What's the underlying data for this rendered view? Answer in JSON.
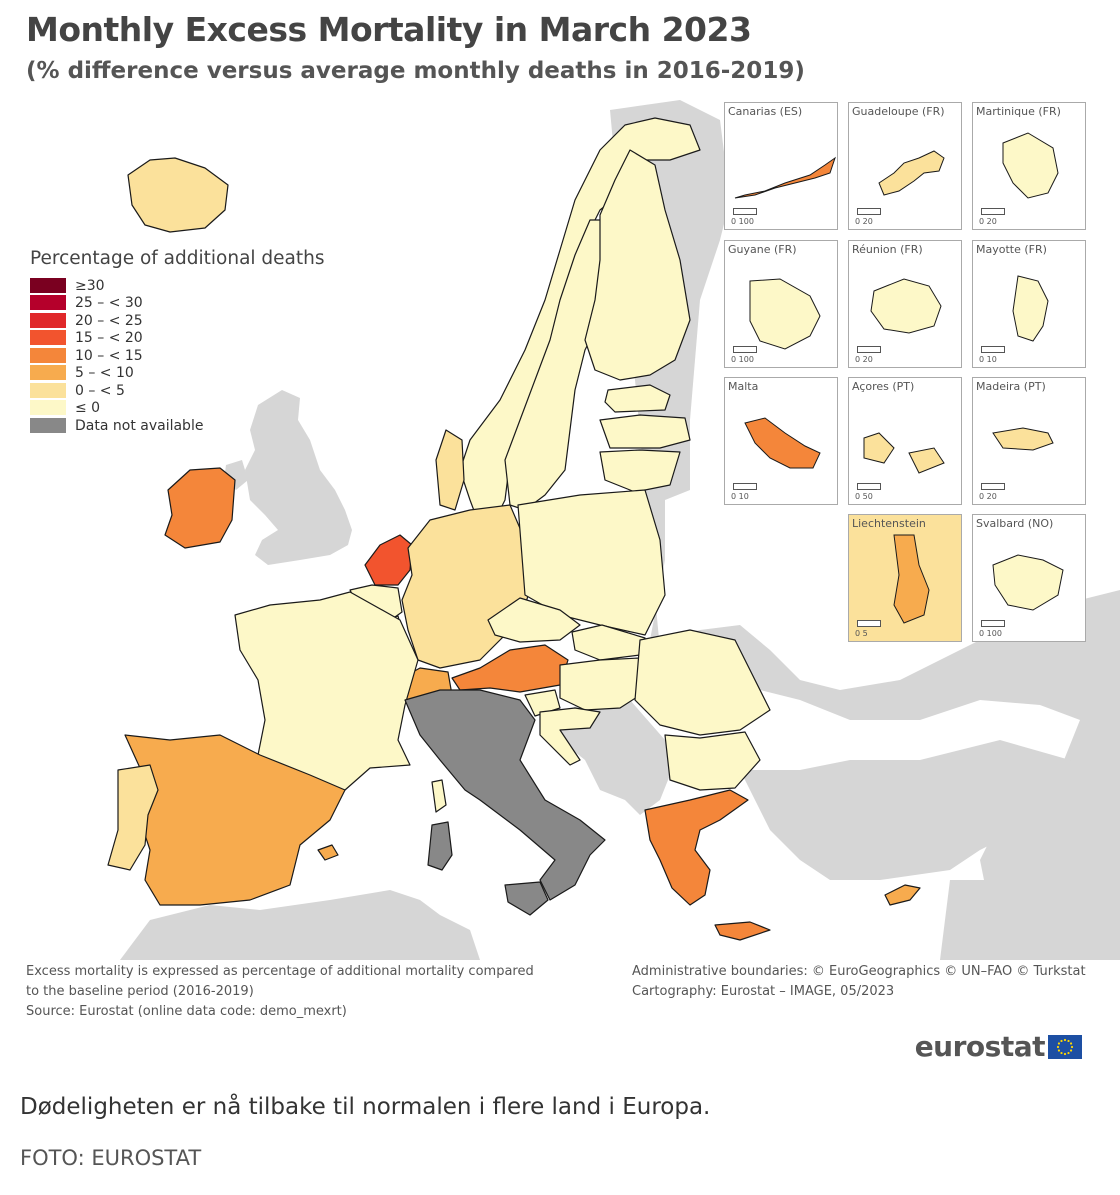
{
  "title": "Monthly Excess Mortality in March 2023",
  "subtitle": "(% difference versus average monthly deaths in 2016-2019)",
  "legend": {
    "title": "Percentage of additional deaths",
    "items": [
      {
        "label": "≥30",
        "color": "#7a0020"
      },
      {
        "label": "25 – < 30",
        "color": "#b5002b"
      },
      {
        "label": "20 – < 25",
        "color": "#e0282a"
      },
      {
        "label": "15 – < 20",
        "color": "#f2542e"
      },
      {
        "label": "10 – < 15",
        "color": "#f4863a"
      },
      {
        "label": "5 – < 10",
        "color": "#f7ab4e"
      },
      {
        "label": "0 – < 5",
        "color": "#fbe19b"
      },
      {
        "label": "≤ 0",
        "color": "#fdf8c8"
      },
      {
        "label": "Data not available",
        "color": "#888888"
      }
    ]
  },
  "colors": {
    "non_eu_land": "#d6d6d6",
    "sea": "#ffffff",
    "border": "#1a1a1a"
  },
  "insets": [
    {
      "name": "Canarias (ES)",
      "scale": "0 100",
      "class": "10 – < 15"
    },
    {
      "name": "Guadeloupe (FR)",
      "scale": "0 20",
      "class": "0 – < 5"
    },
    {
      "name": "Martinique (FR)",
      "scale": "0 20",
      "class": "≤ 0"
    },
    {
      "name": "Guyane (FR)",
      "scale": "0 100",
      "class": "≤ 0"
    },
    {
      "name": "Réunion (FR)",
      "scale": "0 20",
      "class": "≤ 0"
    },
    {
      "name": "Mayotte (FR)",
      "scale": "0 10",
      "class": "≤ 0"
    },
    {
      "name": "Malta",
      "scale": "0 10",
      "class": "10 – < 15"
    },
    {
      "name": "Açores (PT)",
      "scale": "0 50",
      "class": "0 – < 5"
    },
    {
      "name": "Madeira (PT)",
      "scale": "0 20",
      "class": "0 – < 5"
    },
    {
      "name": "Liechtenstein",
      "scale": "0 5",
      "class": "5 – < 10"
    },
    {
      "name": "Svalbard (NO)",
      "scale": "0 100",
      "class": "≤ 0"
    }
  ],
  "regions": [
    {
      "name": "Iceland",
      "class": "0 – < 5"
    },
    {
      "name": "Norway",
      "class": "≤ 0"
    },
    {
      "name": "Sweden",
      "class": "≤ 0"
    },
    {
      "name": "Finland",
      "class": "≤ 0"
    },
    {
      "name": "Estonia",
      "class": "≤ 0"
    },
    {
      "name": "Latvia",
      "class": "≤ 0"
    },
    {
      "name": "Lithuania",
      "class": "≤ 0"
    },
    {
      "name": "Denmark",
      "class": "0 – < 5"
    },
    {
      "name": "Ireland",
      "class": "10 – < 15"
    },
    {
      "name": "Netherlands",
      "class": "15 – < 20"
    },
    {
      "name": "Belgium",
      "class": "≤ 0"
    },
    {
      "name": "Luxembourg",
      "class": "≤ 0"
    },
    {
      "name": "Germany",
      "class": "0 – < 5"
    },
    {
      "name": "Poland",
      "class": "≤ 0"
    },
    {
      "name": "Czechia",
      "class": "≤ 0"
    },
    {
      "name": "Slovakia",
      "class": "≤ 0"
    },
    {
      "name": "Austria",
      "class": "10 – < 15"
    },
    {
      "name": "Switzerland",
      "class": "5 – < 10"
    },
    {
      "name": "Hungary",
      "class": "≤ 0"
    },
    {
      "name": "Romania",
      "class": "≤ 0"
    },
    {
      "name": "Bulgaria",
      "class": "≤ 0"
    },
    {
      "name": "Slovenia",
      "class": "≤ 0"
    },
    {
      "name": "Croatia",
      "class": "≤ 0"
    },
    {
      "name": "France",
      "class": "≤ 0"
    },
    {
      "name": "Spain",
      "class": "5 – < 10"
    },
    {
      "name": "Portugal",
      "class": "0 – < 5"
    },
    {
      "name": "Italy",
      "class": "Data not available"
    },
    {
      "name": "Greece",
      "class": "10 – < 15"
    },
    {
      "name": "Cyprus",
      "class": "5 – < 10"
    }
  ],
  "footnotes": {
    "note_line1": "Excess mortality is expressed as percentage of additional mortality compared",
    "note_line2": "to the baseline period (2016-2019)",
    "source": "Source: Eurostat (online data code: demo_mexrt)",
    "boundaries": "Administrative boundaries: © EuroGeographics © UN–FAO © Turkstat",
    "cartography": "Cartography: Eurostat – IMAGE, 05/2023"
  },
  "logo": "eurostat",
  "caption": "Dødeligheten er nå tilbake til normalen i flere land i Europa.",
  "credit": "FOTO: EUROSTAT"
}
